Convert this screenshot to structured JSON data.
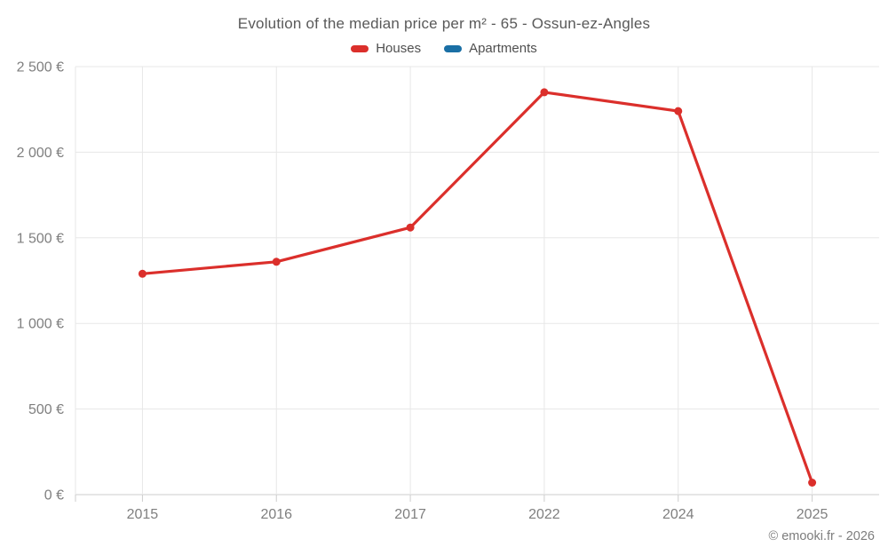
{
  "header": {
    "title": "Evolution of the median price per m² - 65 - Ossun-ez-Angles"
  },
  "chart_data": {
    "type": "line",
    "title": "Evolution of the median price per m² - 65 - Ossun-ez-Angles",
    "categories": [
      "2015",
      "2016",
      "2017",
      "2022",
      "2024",
      "2025"
    ],
    "series": [
      {
        "name": "Houses",
        "color": "#db2f2b",
        "values": [
          1290,
          1360,
          1560,
          2350,
          2240,
          70
        ]
      },
      {
        "name": "Apartments",
        "color": "#1a6fa5",
        "values": []
      }
    ],
    "xlabel": "",
    "ylabel": "",
    "ylim": [
      0,
      2500
    ],
    "yticks": [
      {
        "value": 0,
        "label": "0 €"
      },
      {
        "value": 500,
        "label": "500 €"
      },
      {
        "value": 1000,
        "label": "1 000 €"
      },
      {
        "value": 1500,
        "label": "1 500 €"
      },
      {
        "value": 2000,
        "label": "2 000 €"
      },
      {
        "value": 2500,
        "label": "2 500 €"
      }
    ],
    "grid": true,
    "legend_position": "top"
  },
  "footer": {
    "credit": "© emooki.fr - 2026"
  }
}
